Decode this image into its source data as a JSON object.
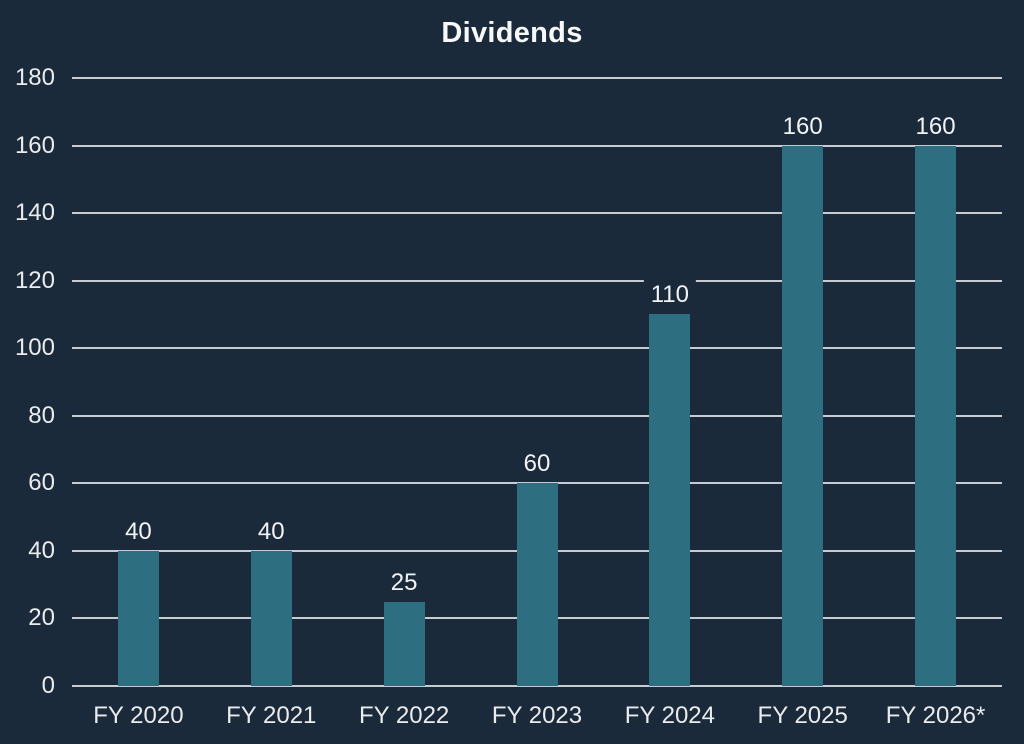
{
  "chart_data": {
    "type": "bar",
    "title": "Dividends",
    "categories": [
      "FY 2020",
      "FY 2021",
      "FY 2022",
      "FY 2023",
      "FY 2024",
      "FY 2025",
      "FY 2026*"
    ],
    "values": [
      40,
      40,
      25,
      60,
      110,
      160,
      160
    ],
    "xlabel": "",
    "ylabel": "",
    "ylim": [
      0,
      180
    ],
    "ytick_step": 20,
    "ytick_labels": [
      "0",
      "20",
      "40",
      "60",
      "80",
      "100",
      "120",
      "140",
      "160",
      "180"
    ],
    "grid": "horizontal",
    "legend": "none",
    "data_labels": "above-bars",
    "colors": {
      "background": "#1b2a3a",
      "bar": "#2d6e80",
      "gridline": "#c7ccd2",
      "axis_text": "#e9ebed",
      "title_text": "#f7f8f9",
      "value_label_text": "#f2f3f4"
    }
  }
}
